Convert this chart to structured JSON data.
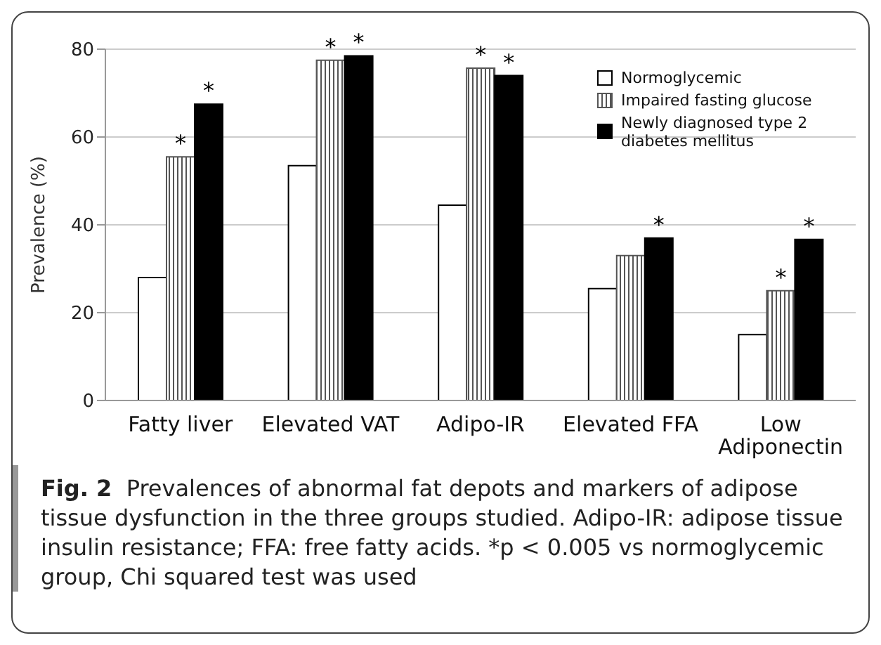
{
  "chart_data": {
    "type": "bar",
    "title": "Fig. 2",
    "ylabel": "Prevalence (%)",
    "categories": [
      "Fatty liver",
      "Elevated VAT",
      "Adipo-IR",
      "Elevated FFA",
      "Low Adiponectin"
    ],
    "series": [
      {
        "name": "Normoglycemic",
        "color": "#ffffff",
        "values": [
          28,
          53.5,
          44.5,
          25.5,
          15
        ],
        "value_labels": [
          null,
          null,
          null,
          null,
          null
        ]
      },
      {
        "name": "Impaired fasting glucose",
        "color": "#555555",
        "values": [
          55.5,
          77.5,
          75.7,
          33,
          25
        ],
        "value_labels": [
          "*",
          "*",
          "*",
          null,
          "*"
        ]
      },
      {
        "name": "Newly diagnosed type 2 diabetes mellitus",
        "color": "#000000",
        "values": [
          67.5,
          78.5,
          74,
          37,
          36.7
        ],
        "value_labels": [
          "*",
          "*",
          "*",
          "*",
          "*"
        ]
      }
    ],
    "ylim": [
      0,
      80
    ],
    "yticks": [
      0,
      20,
      40,
      60,
      80
    ],
    "grid": "y",
    "legend": "top right",
    "annotations": [
      "Prevalences of abnormal fat depots and markers of adipose tissue dysfunction in the three groups studied. Adipo-IR: adipose tissue insulin resistance; FFA: free fatty acids. *p < 0.005 vs normoglycemic group, Chi squared test was used"
    ]
  }
}
